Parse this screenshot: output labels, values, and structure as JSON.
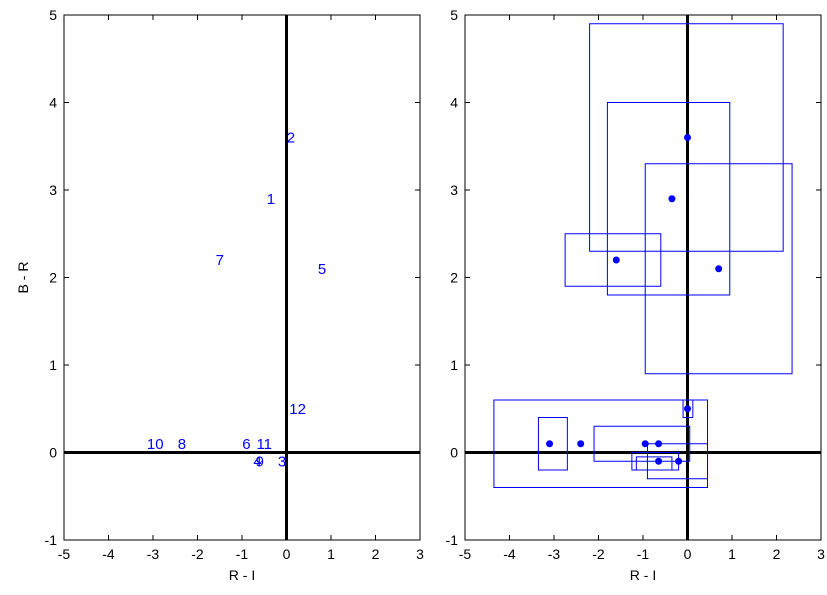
{
  "colors": {
    "marker": "#0000ff",
    "box": "#0000ff",
    "axes": "#000000",
    "background": "#ffffff"
  },
  "chart_data": [
    {
      "type": "scatter",
      "marker_style": "label",
      "xlabel": "R - I",
      "ylabel": "B - R",
      "xlim": [
        -5,
        3
      ],
      "ylim": [
        -1,
        5
      ],
      "xticks": [
        "-5",
        "-4",
        "-3",
        "-2",
        "-1",
        "0",
        "1",
        "2",
        "3"
      ],
      "yticks": [
        "-1",
        "0",
        "1",
        "2",
        "3",
        "4",
        "5"
      ],
      "reference_lines": {
        "x": 0,
        "y": 0
      },
      "grid": false,
      "points": [
        {
          "label": "1",
          "x": -0.35,
          "y": 2.9
        },
        {
          "label": "2",
          "x": 0.1,
          "y": 3.6
        },
        {
          "label": "3",
          "x": -0.1,
          "y": -0.1
        },
        {
          "label": "4",
          "x": -0.65,
          "y": -0.1
        },
        {
          "label": "5",
          "x": 0.8,
          "y": 2.1
        },
        {
          "label": "6",
          "x": -0.9,
          "y": 0.1
        },
        {
          "label": "7",
          "x": -1.5,
          "y": 2.2
        },
        {
          "label": "8",
          "x": -2.35,
          "y": 0.1
        },
        {
          "label": "9",
          "x": -0.6,
          "y": -0.1
        },
        {
          "label": "10",
          "x": -2.95,
          "y": 0.1
        },
        {
          "label": "11",
          "x": -0.5,
          "y": 0.1
        },
        {
          "label": "12",
          "x": 0.25,
          "y": 0.5
        }
      ]
    },
    {
      "type": "scatter",
      "marker_style": "dot",
      "xlabel": "R - I",
      "ylabel": "",
      "xlim": [
        -5,
        3
      ],
      "ylim": [
        -1,
        5
      ],
      "xticks": [
        "-5",
        "-4",
        "-3",
        "-2",
        "-1",
        "0",
        "1",
        "2",
        "3"
      ],
      "yticks": [
        "-1",
        "0",
        "1",
        "2",
        "3",
        "4",
        "5"
      ],
      "reference_lines": {
        "x": 0,
        "y": 0
      },
      "grid": false,
      "points": [
        {
          "x": 0.0,
          "y": 3.6,
          "err_x": [
            -2.2,
            2.15
          ],
          "err_y": [
            2.3,
            4.9
          ]
        },
        {
          "x": -0.35,
          "y": 2.9,
          "err_x": [
            -1.8,
            0.95
          ],
          "err_y": [
            1.8,
            4.0
          ]
        },
        {
          "x": 0.7,
          "y": 2.1,
          "err_x": [
            -0.95,
            2.35
          ],
          "err_y": [
            0.9,
            3.3
          ]
        },
        {
          "x": -1.6,
          "y": 2.2,
          "err_x": [
            -2.75,
            -0.6
          ],
          "err_y": [
            1.9,
            2.5
          ]
        },
        {
          "x": 0.0,
          "y": 0.5,
          "err_x": [
            -0.1,
            0.12
          ],
          "err_y": [
            0.4,
            0.6
          ]
        },
        {
          "x": -3.1,
          "y": 0.1,
          "err_x": [
            -4.35,
            0.45
          ],
          "err_y": [
            -0.4,
            0.6
          ]
        },
        {
          "x": -2.4,
          "y": 0.1,
          "err_x": [
            -3.35,
            -2.7
          ],
          "err_y": [
            -0.2,
            0.4
          ]
        },
        {
          "x": -0.95,
          "y": 0.1,
          "err_x": [
            -2.1,
            0.05
          ],
          "err_y": [
            -0.1,
            0.3
          ]
        },
        {
          "x": -0.65,
          "y": 0.1,
          "err_x": [
            -1.25,
            -0.2
          ],
          "err_y": [
            -0.2,
            0.0
          ]
        },
        {
          "x": -0.65,
          "y": -0.1,
          "err_x": [
            -1.15,
            -0.35
          ],
          "err_y": [
            -0.2,
            -0.05
          ]
        },
        {
          "x": -0.2,
          "y": -0.1,
          "err_x": [
            -0.9,
            0.45
          ],
          "err_y": [
            -0.3,
            0.1
          ]
        }
      ]
    }
  ]
}
